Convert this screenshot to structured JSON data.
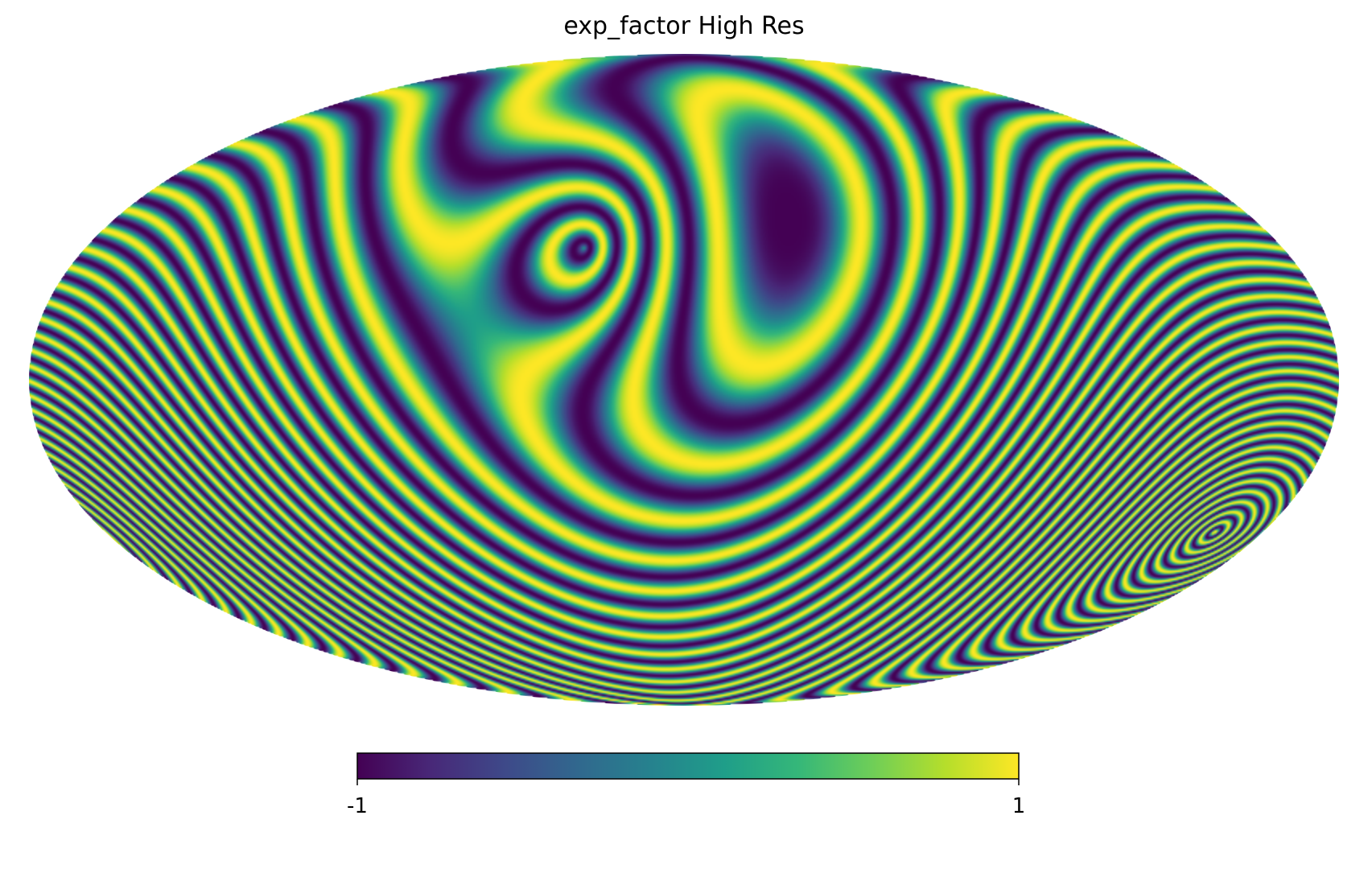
{
  "chart_data": {
    "type": "heatmap",
    "projection": "mollweide",
    "title": "exp_factor High Res",
    "colormap": "viridis",
    "value_range": [
      -1,
      1
    ],
    "colorbar": {
      "orientation": "horizontal",
      "placement": "bottom",
      "tick_labels": [
        "-1",
        "1"
      ]
    },
    "pattern": "concentric ring interference fringes",
    "ring_centers": [
      {
        "lon_deg": 15,
        "lat_deg": 35
      },
      {
        "lon_deg": -150,
        "lat_deg": -30
      }
    ],
    "grid": false,
    "colors": {
      "viridis_stops": [
        "#440154",
        "#482878",
        "#3e4989",
        "#31688e",
        "#26828e",
        "#1f9e89",
        "#35b779",
        "#6ece58",
        "#b5de2b",
        "#fde725"
      ],
      "background": "#ffffff",
      "text": "#000000"
    }
  }
}
